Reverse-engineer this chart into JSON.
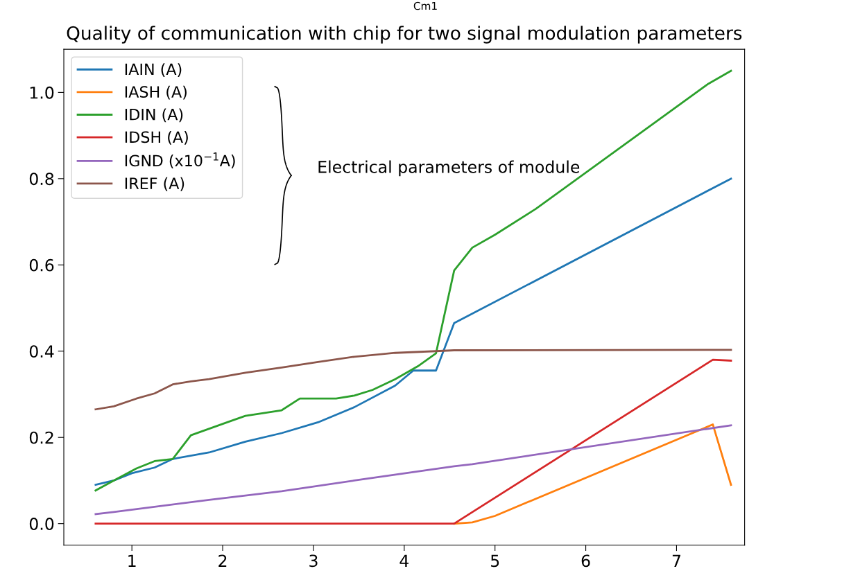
{
  "chart_data": {
    "type": "line",
    "title": "Quality of communication with chip for two signal modulation parameters",
    "annotations": [
      "Cm1",
      "Electrical parameters of module"
    ],
    "xlim": [
      0.25,
      7.75
    ],
    "xticks": [
      1,
      2,
      3,
      4,
      5,
      6,
      7
    ],
    "ylim": [
      -0.05,
      1.1
    ],
    "yticks": [
      {
        "value": 0,
        "label": "0.0"
      },
      0.2,
      0.4,
      0.6,
      0.8,
      {
        "value": 1,
        "label": "1.0"
      }
    ],
    "grid": false,
    "legend": "top left",
    "marker": "none",
    "line_style": "solid",
    "series": [
      {
        "name": "IAIN (A)",
        "color": "#1f77b4",
        "x": [
          0.6,
          0.8,
          1.0,
          1.25,
          1.45,
          1.85,
          2.25,
          2.65,
          3.05,
          3.45,
          3.9,
          4.1,
          4.35,
          4.55,
          7.6
        ],
        "values": [
          0.09,
          0.1,
          0.117,
          0.13,
          0.15,
          0.165,
          0.19,
          0.21,
          0.235,
          0.27,
          0.32,
          0.355,
          0.355,
          0.465,
          0.8
        ]
      },
      {
        "name": "IASH (A)",
        "color": "#ff7f0e",
        "x": [
          4.55,
          4.75,
          5.0,
          7.4,
          7.6
        ],
        "values": [
          0,
          0.003,
          0.018,
          0.23,
          0.09
        ]
      },
      {
        "name": "IDIN (A)",
        "color": "#2ca02c",
        "x": [
          0.6,
          0.8,
          1.05,
          1.25,
          1.45,
          1.65,
          2.05,
          2.25,
          2.65,
          2.85,
          3.05,
          3.25,
          3.45,
          3.65,
          3.9,
          4.15,
          4.35,
          4.55,
          4.75,
          5.0,
          5.45,
          7.35,
          7.6
        ],
        "values": [
          0.077,
          0.1,
          0.128,
          0.145,
          0.15,
          0.205,
          0.235,
          0.25,
          0.263,
          0.29,
          0.29,
          0.29,
          0.297,
          0.31,
          0.335,
          0.365,
          0.395,
          0.587,
          0.64,
          0.67,
          0.73,
          1.02,
          1.05
        ]
      },
      {
        "name": "IDSH (A)",
        "color": "#d62728",
        "x": [
          0.6,
          4.55,
          7.4,
          7.6
        ],
        "values": [
          0,
          0,
          0.38,
          0.378
        ]
      },
      {
        "name": "IGND (x10$^{−1}$A)",
        "color": "#9467bd",
        "x": [
          0.6,
          0.8,
          1.85,
          2.65,
          3.45,
          4.55,
          4.75,
          7.6
        ],
        "values": [
          0.022,
          0.027,
          0.055,
          0.075,
          0.1,
          0.133,
          0.138,
          0.228
        ]
      },
      {
        "name": "IREF (A)",
        "color": "#8c564b",
        "x": [
          0.6,
          0.8,
          1.05,
          1.25,
          1.45,
          1.65,
          1.85,
          2.25,
          2.65,
          3.05,
          3.45,
          3.9,
          4.35,
          4.55,
          7.6
        ],
        "values": [
          0.265,
          0.272,
          0.29,
          0.302,
          0.323,
          0.33,
          0.335,
          0.35,
          0.362,
          0.375,
          0.387,
          0.396,
          0.4,
          0.402,
          0.403
        ]
      }
    ]
  }
}
